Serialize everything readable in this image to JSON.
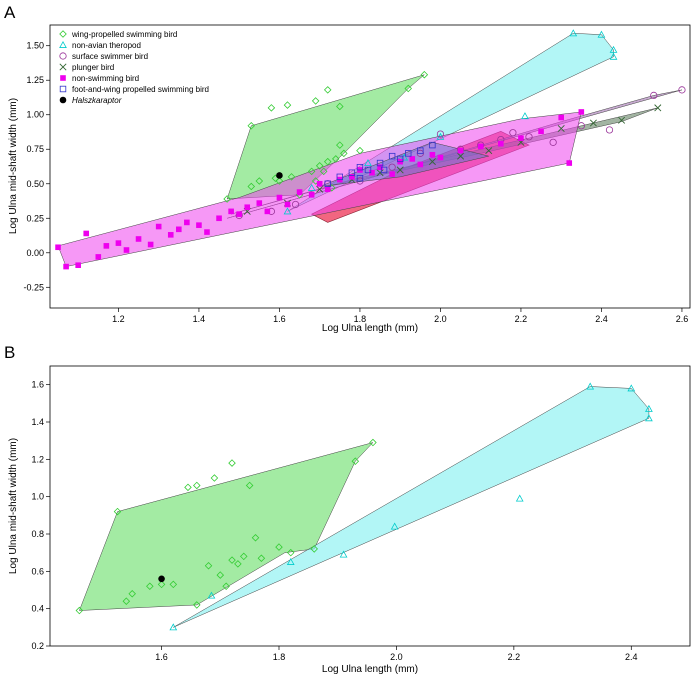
{
  "colors": {
    "wing": "#33cc33",
    "wing_fill": "#66dd66",
    "theropod": "#00cccc",
    "theropod_fill": "#7ff0f0",
    "surface": "#993399",
    "surface_fill": "#9966aa",
    "plunger": "#336633",
    "plunger_fill": "#557755",
    "nonswim": "#ee00ee",
    "nonswim_fill": "#ee44ee",
    "foot": "#3333cc",
    "foot_fill": "#6677cc",
    "halsz": "#000000",
    "red_fill": "#ee3355"
  },
  "chart_data": [
    {
      "type": "scatter",
      "panel_label": "A",
      "xlabel": "Log Ulna length (mm)",
      "ylabel": "Log Ulna mid-shaft width (mm)",
      "xlim": [
        1.03,
        2.62
      ],
      "ylim": [
        -0.4,
        1.65
      ],
      "xticks": [
        "1.2",
        "1.4",
        "1.6",
        "1.8",
        "2.0",
        "2.2",
        "2.4",
        "2.6"
      ],
      "yticks": [
        "-0.25",
        "0.00",
        "0.25",
        "0.50",
        "0.75",
        "1.00",
        "1.25",
        "1.50"
      ],
      "legend_position": "top-left",
      "series": [
        {
          "name": "wing-propelled swimming bird",
          "marker": "diamond",
          "color_key": "wing",
          "hull": [
            [
              1.47,
              0.39
            ],
            [
              1.53,
              0.92
            ],
            [
              1.96,
              1.29
            ],
            [
              1.92,
              1.19
            ],
            [
              1.76,
              0.72
            ],
            [
              1.65,
              0.42
            ]
          ],
          "points": [
            [
              1.47,
              0.39
            ],
            [
              1.53,
              0.92
            ],
            [
              1.96,
              1.29
            ],
            [
              1.92,
              1.19
            ],
            [
              1.58,
              1.05
            ],
            [
              1.62,
              1.07
            ],
            [
              1.69,
              1.1
            ],
            [
              1.72,
              1.18
            ],
            [
              1.75,
              1.06
            ],
            [
              1.53,
              0.48
            ],
            [
              1.55,
              0.52
            ],
            [
              1.59,
              0.54
            ],
            [
              1.6,
              0.52
            ],
            [
              1.63,
              0.55
            ],
            [
              1.65,
              0.42
            ],
            [
              1.68,
              0.59
            ],
            [
              1.7,
              0.63
            ],
            [
              1.72,
              0.66
            ],
            [
              1.74,
              0.68
            ],
            [
              1.76,
              0.72
            ],
            [
              1.8,
              0.74
            ],
            [
              1.69,
              0.52
            ],
            [
              1.71,
              0.59
            ],
            [
              1.73,
              0.47
            ],
            [
              1.75,
              0.78
            ]
          ]
        },
        {
          "name": "non-avian theropod",
          "marker": "triangle",
          "color_key": "theropod",
          "hull": [
            [
              1.62,
              0.3
            ],
            [
              2.33,
              1.59
            ],
            [
              2.4,
              1.58
            ],
            [
              2.43,
              1.47
            ],
            [
              2.43,
              1.42
            ]
          ],
          "points": [
            [
              1.62,
              0.3
            ],
            [
              1.68,
              0.47
            ],
            [
              1.82,
              0.65
            ],
            [
              1.91,
              0.69
            ],
            [
              2.0,
              0.84
            ],
            [
              2.21,
              0.99
            ],
            [
              2.33,
              1.59
            ],
            [
              2.4,
              1.58
            ],
            [
              2.43,
              1.47
            ],
            [
              2.43,
              1.42
            ]
          ]
        },
        {
          "name": "surface swimmer bird",
          "marker": "circle",
          "color_key": "surface",
          "hull": [
            [
              1.47,
              0.25
            ],
            [
              2.6,
              1.18
            ],
            [
              2.53,
              1.14
            ],
            [
              2.3,
              0.95
            ],
            [
              1.8,
              0.52
            ]
          ],
          "points": [
            [
              1.5,
              0.27
            ],
            [
              1.58,
              0.3
            ],
            [
              1.64,
              0.35
            ],
            [
              1.72,
              0.5
            ],
            [
              1.8,
              0.52
            ],
            [
              1.88,
              0.62
            ],
            [
              1.95,
              0.72
            ],
            [
              2.0,
              0.86
            ],
            [
              2.05,
              0.75
            ],
            [
              2.1,
              0.78
            ],
            [
              2.15,
              0.82
            ],
            [
              2.18,
              0.87
            ],
            [
              2.22,
              0.84
            ],
            [
              2.28,
              0.8
            ],
            [
              2.35,
              0.92
            ],
            [
              2.42,
              0.89
            ],
            [
              2.53,
              1.14
            ],
            [
              2.6,
              1.18
            ]
          ]
        },
        {
          "name": "plunger bird",
          "marker": "x",
          "color_key": "plunger",
          "hull": [
            [
              1.48,
              0.28
            ],
            [
              1.78,
              0.53
            ],
            [
              2.54,
              1.05
            ],
            [
              2.45,
              0.95
            ],
            [
              2.1,
              0.72
            ],
            [
              1.75,
              0.5
            ]
          ],
          "points": [
            [
              1.52,
              0.3
            ],
            [
              1.62,
              0.36
            ],
            [
              1.7,
              0.46
            ],
            [
              1.78,
              0.53
            ],
            [
              1.85,
              0.58
            ],
            [
              1.9,
              0.6
            ],
            [
              1.98,
              0.66
            ],
            [
              2.05,
              0.7
            ],
            [
              2.12,
              0.74
            ],
            [
              2.2,
              0.8
            ],
            [
              2.3,
              0.9
            ],
            [
              2.38,
              0.94
            ],
            [
              2.45,
              0.96
            ],
            [
              2.54,
              1.05
            ]
          ]
        },
        {
          "name": "non-swimming bird",
          "marker": "square",
          "color_key": "nonswim",
          "hull": [
            [
              1.05,
              0.05
            ],
            [
              1.07,
              -0.1
            ],
            [
              2.32,
              0.65
            ],
            [
              2.35,
              1.02
            ],
            [
              2.2,
              0.97
            ],
            [
              1.8,
              0.72
            ],
            [
              1.5,
              0.4
            ]
          ],
          "points": [
            [
              1.05,
              0.04
            ],
            [
              1.07,
              -0.1
            ],
            [
              1.1,
              -0.09
            ],
            [
              1.12,
              0.14
            ],
            [
              1.15,
              -0.03
            ],
            [
              1.17,
              0.05
            ],
            [
              1.2,
              0.07
            ],
            [
              1.22,
              0.02
            ],
            [
              1.25,
              0.1
            ],
            [
              1.28,
              0.06
            ],
            [
              1.3,
              0.19
            ],
            [
              1.33,
              0.13
            ],
            [
              1.35,
              0.17
            ],
            [
              1.37,
              0.22
            ],
            [
              1.4,
              0.2
            ],
            [
              1.42,
              0.15
            ],
            [
              1.45,
              0.25
            ],
            [
              1.48,
              0.3
            ],
            [
              1.5,
              0.28
            ],
            [
              1.52,
              0.33
            ],
            [
              1.55,
              0.36
            ],
            [
              1.57,
              0.3
            ],
            [
              1.6,
              0.4
            ],
            [
              1.62,
              0.35
            ],
            [
              1.65,
              0.44
            ],
            [
              1.68,
              0.42
            ],
            [
              1.7,
              0.5
            ],
            [
              1.72,
              0.46
            ],
            [
              1.75,
              0.53
            ],
            [
              1.78,
              0.55
            ],
            [
              1.8,
              0.6
            ],
            [
              1.83,
              0.58
            ],
            [
              1.85,
              0.62
            ],
            [
              1.88,
              0.57
            ],
            [
              1.9,
              0.66
            ],
            [
              1.93,
              0.68
            ],
            [
              1.95,
              0.64
            ],
            [
              1.98,
              0.71
            ],
            [
              2.0,
              0.69
            ],
            [
              2.05,
              0.74
            ],
            [
              2.1,
              0.77
            ],
            [
              2.15,
              0.79
            ],
            [
              2.2,
              0.83
            ],
            [
              2.25,
              0.88
            ],
            [
              2.3,
              0.98
            ],
            [
              2.32,
              0.65
            ],
            [
              2.35,
              1.02
            ]
          ]
        },
        {
          "name": "foot-and-wing propelled swimming bird",
          "marker": "square-open",
          "color_key": "foot",
          "hull": [
            [
              1.7,
              0.48
            ],
            [
              1.98,
              0.8
            ],
            [
              2.12,
              0.7
            ],
            [
              1.9,
              0.55
            ]
          ],
          "points": [
            [
              1.72,
              0.5
            ],
            [
              1.75,
              0.55
            ],
            [
              1.78,
              0.58
            ],
            [
              1.8,
              0.62
            ],
            [
              1.82,
              0.6
            ],
            [
              1.85,
              0.65
            ],
            [
              1.88,
              0.7
            ],
            [
              1.9,
              0.68
            ],
            [
              1.92,
              0.72
            ],
            [
              1.95,
              0.74
            ],
            [
              1.98,
              0.78
            ],
            [
              1.8,
              0.54
            ],
            [
              1.86,
              0.6
            ]
          ]
        },
        {
          "name": "Halszkaraptor",
          "marker": "dot",
          "color_key": "halsz",
          "points": [
            [
              1.6,
              0.56
            ]
          ]
        }
      ],
      "extra_hull_red": [
        [
          1.68,
          0.28
        ],
        [
          1.72,
          0.22
        ],
        [
          2.22,
          0.78
        ],
        [
          2.15,
          0.88
        ],
        [
          1.9,
          0.6
        ]
      ]
    },
    {
      "type": "scatter",
      "panel_label": "B",
      "xlabel": "Log Ulna length (mm)",
      "ylabel": "Log Ulna mid-shaft width (mm)",
      "xlim": [
        1.41,
        2.5
      ],
      "ylim": [
        0.2,
        1.7
      ],
      "xticks": [
        "1.6",
        "1.8",
        "2.0",
        "2.2",
        "2.4"
      ],
      "yticks": [
        "0.2",
        "0.4",
        "0.6",
        "0.8",
        "1.0",
        "1.2",
        "1.4",
        "1.6"
      ],
      "series": [
        {
          "name": "wing-propelled swimming bird",
          "marker": "diamond",
          "color_key": "wing",
          "hull": [
            [
              1.46,
              0.39
            ],
            [
              1.525,
              0.92
            ],
            [
              1.96,
              1.29
            ],
            [
              1.93,
              1.19
            ],
            [
              1.86,
              0.72
            ],
            [
              1.81,
              0.7
            ],
            [
              1.66,
              0.42
            ]
          ],
          "points": [
            [
              1.46,
              0.39
            ],
            [
              1.525,
              0.92
            ],
            [
              1.96,
              1.29
            ],
            [
              1.93,
              1.19
            ],
            [
              1.645,
              1.05
            ],
            [
              1.66,
              1.06
            ],
            [
              1.69,
              1.1
            ],
            [
              1.72,
              1.18
            ],
            [
              1.75,
              1.06
            ],
            [
              1.54,
              0.44
            ],
            [
              1.55,
              0.48
            ],
            [
              1.58,
              0.52
            ],
            [
              1.6,
              0.53
            ],
            [
              1.62,
              0.53
            ],
            [
              1.66,
              0.42
            ],
            [
              1.68,
              0.63
            ],
            [
              1.7,
              0.58
            ],
            [
              1.72,
              0.66
            ],
            [
              1.74,
              0.68
            ],
            [
              1.77,
              0.67
            ],
            [
              1.8,
              0.73
            ],
            [
              1.82,
              0.7
            ],
            [
              1.86,
              0.72
            ],
            [
              1.71,
              0.52
            ],
            [
              1.73,
              0.64
            ],
            [
              1.76,
              0.78
            ]
          ]
        },
        {
          "name": "non-avian theropod",
          "marker": "triangle",
          "color_key": "theropod",
          "hull": [
            [
              1.62,
              0.3
            ],
            [
              2.33,
              1.59
            ],
            [
              2.4,
              1.58
            ],
            [
              2.43,
              1.47
            ],
            [
              2.43,
              1.42
            ]
          ],
          "points": [
            [
              1.62,
              0.3
            ],
            [
              1.685,
              0.47
            ],
            [
              1.82,
              0.65
            ],
            [
              1.91,
              0.69
            ],
            [
              1.997,
              0.84
            ],
            [
              2.21,
              0.99
            ],
            [
              2.33,
              1.59
            ],
            [
              2.4,
              1.58
            ],
            [
              2.43,
              1.47
            ],
            [
              2.43,
              1.42
            ]
          ]
        },
        {
          "name": "Halszkaraptor",
          "marker": "dot",
          "color_key": "halsz",
          "points": [
            [
              1.6,
              0.56
            ]
          ]
        }
      ]
    }
  ]
}
